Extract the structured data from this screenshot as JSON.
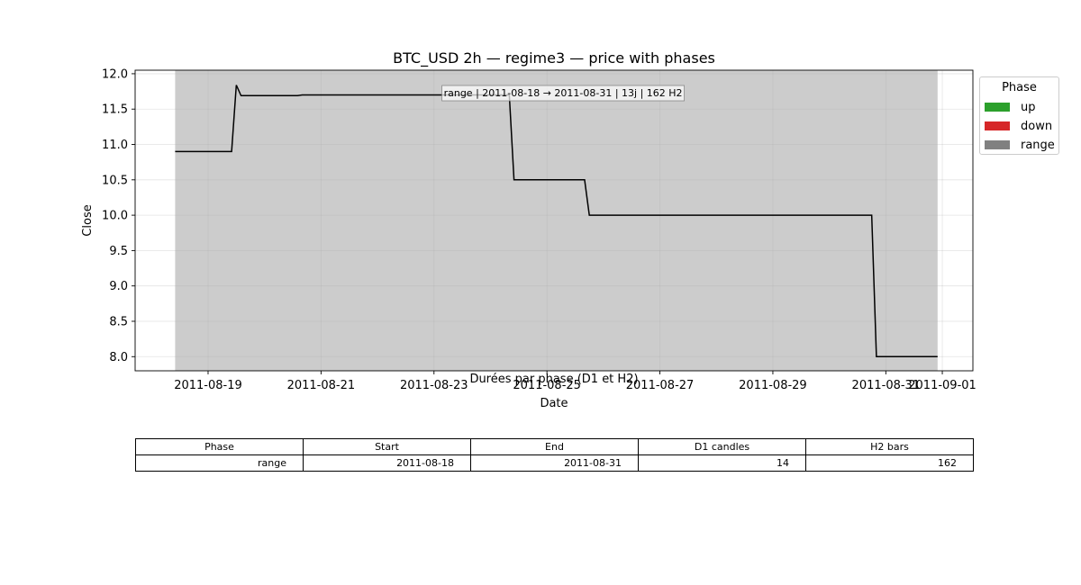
{
  "chart_data": {
    "type": "line",
    "title": "BTC_USD 2h — regime3 — price with phases",
    "xlabel": "Date",
    "ylabel": "Close",
    "x_ticks": [
      "2011-08-19",
      "2011-08-21",
      "2011-08-23",
      "2011-08-25",
      "2011-08-27",
      "2011-08-29",
      "2011-08-31",
      "2011-09-01"
    ],
    "y_ticks": [
      "8.0",
      "8.5",
      "9.0",
      "9.5",
      "10.0",
      "10.5",
      "11.0",
      "11.5",
      "12.0"
    ],
    "xlim": [
      "2011-08-17T17:00",
      "2011-09-01T13:00"
    ],
    "ylim": [
      7.8,
      12.05
    ],
    "grid": true,
    "series": [
      {
        "color": "#000000",
        "points": [
          [
            "2011-08-18T10:00",
            10.9
          ],
          [
            "2011-08-19T10:00",
            10.9
          ],
          [
            "2011-08-19T12:00",
            11.84
          ],
          [
            "2011-08-19T14:00",
            11.69
          ],
          [
            "2011-08-20T14:00",
            11.69
          ],
          [
            "2011-08-20T16:00",
            11.7
          ],
          [
            "2011-08-24T08:00",
            11.7
          ],
          [
            "2011-08-24T10:00",
            10.5
          ],
          [
            "2011-08-25T16:00",
            10.5
          ],
          [
            "2011-08-25T18:00",
            10.0
          ],
          [
            "2011-08-30T18:00",
            10.0
          ],
          [
            "2011-08-30T20:00",
            8.0
          ],
          [
            "2011-08-31T22:00",
            8.0
          ]
        ]
      }
    ],
    "phases": [
      {
        "type": "range",
        "start": "2011-08-18T10:00",
        "end": "2011-08-31T22:00",
        "color": "#808080"
      }
    ],
    "annotation": "range | 2011-08-18 → 2011-08-31 | 13j | 162 H2",
    "legend": {
      "title": "Phase",
      "position": "outside-right",
      "items": [
        {
          "label": "up",
          "color": "#2ca02c"
        },
        {
          "label": "down",
          "color": "#d62728"
        },
        {
          "label": "range",
          "color": "#808080"
        }
      ]
    }
  },
  "table": {
    "title": "Durées par phase (D1 et H2)",
    "headers": [
      "Phase",
      "Start",
      "End",
      "D1 candles",
      "H2 bars"
    ],
    "rows": [
      [
        "range",
        "2011-08-18",
        "2011-08-31",
        "14",
        "162"
      ]
    ]
  }
}
